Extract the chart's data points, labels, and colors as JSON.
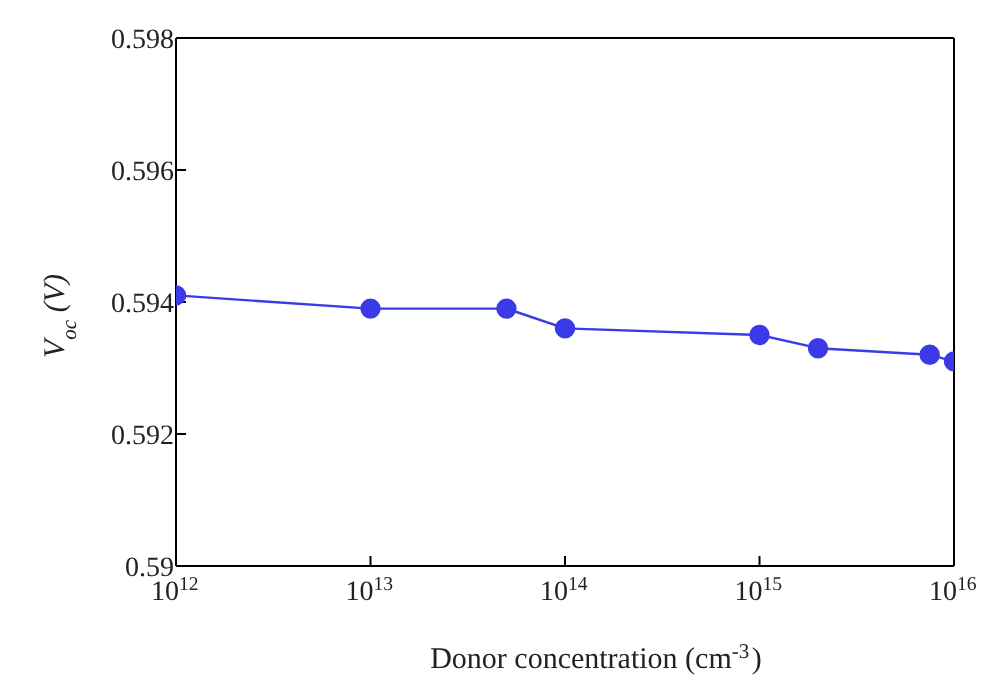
{
  "chart_data": {
    "type": "line",
    "xlabel": "Donor concentration (cm$^{-3}$)",
    "ylabel": "V$_{oc}$ (V)",
    "log": "x",
    "x": [
      1000000000000.0,
      10000000000000.0,
      50000000000000.0,
      100000000000000.0,
      1000000000000000.0,
      2000000000000000.0,
      7500000000000000.0,
      1e+16
    ],
    "series": [
      {
        "color": "#3a3ae8",
        "values": [
          0.5941,
          0.5939,
          0.5939,
          0.5936,
          0.5935,
          0.5933,
          0.5932,
          0.5931
        ]
      }
    ],
    "xlim": [
      1000000000000.0,
      1e+16
    ],
    "xticks": [
      {
        "value": 1000000000000.0,
        "label": "10$^{12}$"
      },
      {
        "value": 10000000000000.0,
        "label": "10$^{13}$"
      },
      {
        "value": 100000000000000.0,
        "label": "10$^{14}$"
      },
      {
        "value": 1000000000000000.0,
        "label": "10$^{15}$"
      },
      {
        "value": 1e+16,
        "label": "10$^{16}$"
      }
    ],
    "ylim": [
      0.59,
      0.598
    ],
    "yticks": [
      0.59,
      0.592,
      0.594,
      0.596,
      0.598
    ],
    "grid": false,
    "legend": false,
    "marker": "circle",
    "line_style": "solid"
  }
}
